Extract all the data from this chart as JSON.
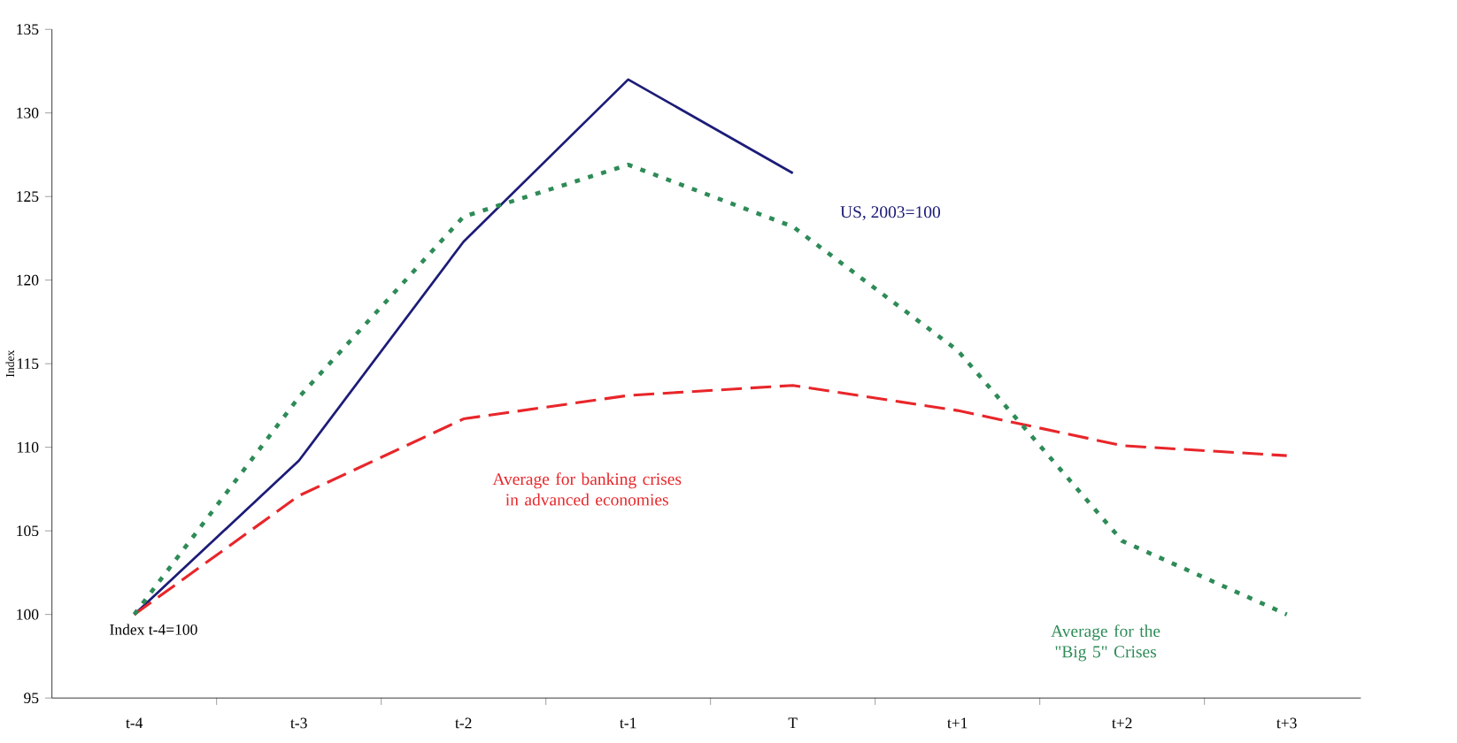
{
  "chart_data": {
    "type": "line",
    "ylabel": "Index",
    "categories": [
      "t-4",
      "t-3",
      "t-2",
      "t-1",
      "T",
      "t+1",
      "t+2",
      "t+3"
    ],
    "ylim": [
      95,
      135
    ],
    "yticks": [
      95,
      100,
      105,
      110,
      115,
      120,
      125,
      130,
      135
    ],
    "grid": false,
    "legend": false,
    "marker": "none",
    "series": [
      {
        "name": "US, 2003=100",
        "color": "#1c1c78",
        "line_style": "solid",
        "values": [
          100,
          109.2,
          122.3,
          132,
          126.4,
          null,
          null,
          null
        ]
      },
      {
        "name": "Average for banking crises in advanced economies",
        "color": "#e8262a",
        "line_style": "dashed",
        "values": [
          100,
          107.1,
          111.7,
          113.1,
          113.7,
          112.2,
          110.1,
          109.5
        ]
      },
      {
        "name": "Average for the \"Big 5\" Crises",
        "color": "#2e8b57",
        "line_style": "dotted",
        "values": [
          100,
          113,
          123.8,
          126.9,
          123.2,
          115.8,
          104.4,
          100
        ]
      }
    ],
    "annotations": [
      {
        "text": "Index t-4=100",
        "x": "t-4",
        "y": 100
      }
    ]
  }
}
